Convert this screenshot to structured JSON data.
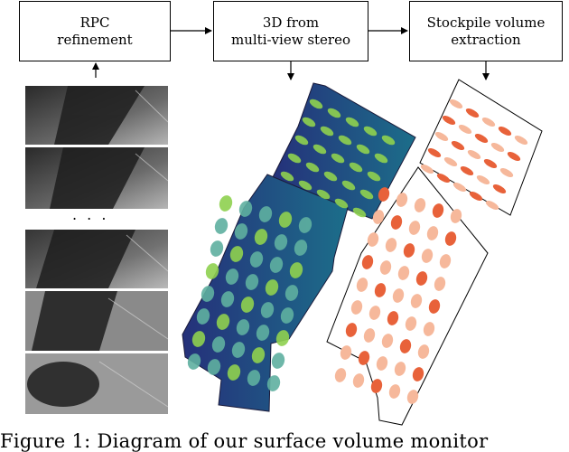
{
  "boxes": {
    "rpc": {
      "line1": "RPC",
      "line2": "refinement"
    },
    "mvs": {
      "line1": "3D from",
      "line2": "multi-view stereo"
    },
    "stockpile": {
      "line1": "Stockpile volume",
      "line2": "extraction"
    }
  },
  "ellipsis": ". . .",
  "caption": "Figure 1:  Diagram of our surface volume monitor",
  "colors": {
    "dem_dark": "#2b2f7a",
    "dem_mid": "#1f6f8b",
    "dem_light": "#8fd14f",
    "stockpile_fill": "#e8623a",
    "stockpile_light": "#f6b89b"
  }
}
